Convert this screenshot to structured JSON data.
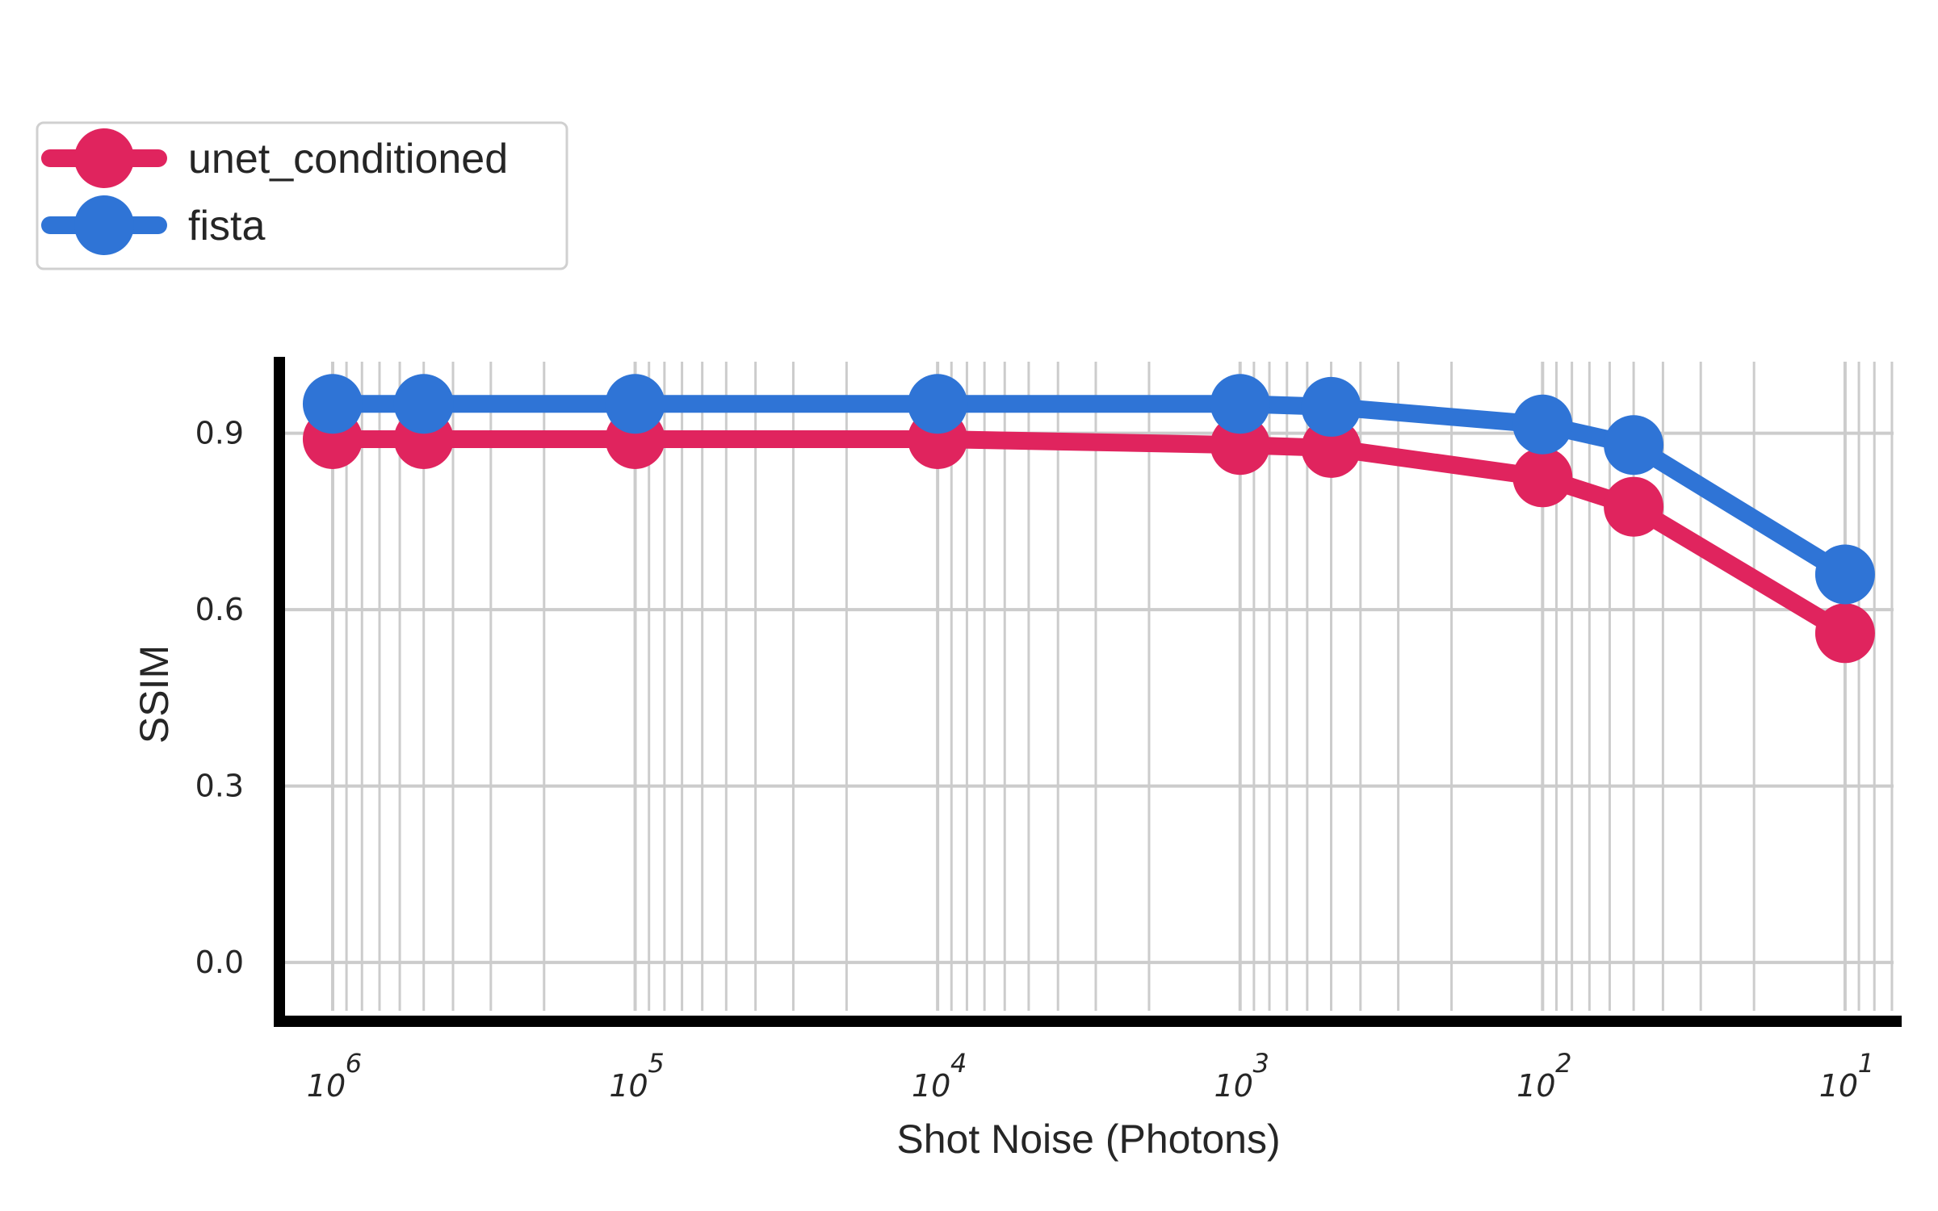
{
  "chart_data": {
    "type": "line",
    "title": "",
    "xlabel": "Shot Noise (Photons)",
    "ylabel": "SSIM",
    "x_scale": "log",
    "x_inverted": true,
    "xlim": [
      1500000,
      6.5
    ],
    "ylim": [
      -0.1,
      1.03
    ],
    "grid": true,
    "legend_position": "upper-left outside",
    "x_ticks": [
      {
        "value": 1000000,
        "base": "10",
        "exp": "6"
      },
      {
        "value": 100000,
        "base": "10",
        "exp": "5"
      },
      {
        "value": 10000,
        "base": "10",
        "exp": "4"
      },
      {
        "value": 1000,
        "base": "10",
        "exp": "3"
      },
      {
        "value": 100,
        "base": "10",
        "exp": "2"
      },
      {
        "value": 10,
        "base": "10",
        "exp": "1"
      }
    ],
    "y_ticks": [
      {
        "value": 0.0,
        "label": "0.0"
      },
      {
        "value": 0.3,
        "label": "0.3"
      },
      {
        "value": 0.6,
        "label": "0.6"
      },
      {
        "value": 0.9,
        "label": "0.9"
      }
    ],
    "x": [
      1000000,
      500000,
      100000,
      10000,
      1000,
      500,
      100,
      50,
      10
    ],
    "series": [
      {
        "name": "unet_conditioned",
        "color": "#e0245e",
        "values": [
          0.89,
          0.89,
          0.89,
          0.89,
          0.88,
          0.875,
          0.825,
          0.775,
          0.56
        ]
      },
      {
        "name": "fista",
        "color": "#2f74d6",
        "values": [
          0.95,
          0.95,
          0.95,
          0.95,
          0.95,
          0.945,
          0.915,
          0.88,
          0.66
        ]
      }
    ]
  }
}
